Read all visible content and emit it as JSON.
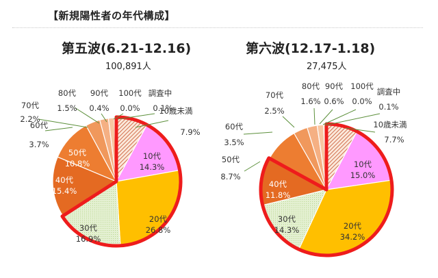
{
  "title": "【新規陽性者の年代構成】",
  "colors": {
    "u10": "#fbe9db",
    "u10_hatch": "#c7502a",
    "c10": "#ff99ff",
    "c20": "#ffbf00",
    "c30": "#e4f0d2",
    "c30_line": "#b7d68c",
    "c40": "#e46a22",
    "c50": "#ed7d31",
    "c60": "#f0985c",
    "c70": "#f5b083",
    "c80": "#f8c6a2",
    "c90": "#fbdcc3",
    "c100": "#fde9d9",
    "highlight": "#ee1c1c",
    "leader": "#5b8f3a"
  },
  "chart_data": [
    {
      "type": "pie",
      "title": "第五波(6.21-12.16)",
      "subtitle": "100,891人",
      "categories": [
        "10歳未満",
        "10代",
        "20代",
        "30代",
        "40代",
        "50代",
        "60代",
        "70代",
        "80代",
        "90代",
        "100代",
        "調査中"
      ],
      "values": [
        7.9,
        14.3,
        26.8,
        16.9,
        15.4,
        10.8,
        3.7,
        2.2,
        1.5,
        0.4,
        0.0,
        0.1
      ],
      "value_labels": [
        "7.9%",
        "14.3%",
        "26.8%",
        "16.9%",
        "15.4%",
        "10.8%",
        "3.7%",
        "2.2%",
        "1.5%",
        "0.4%",
        "0.0%",
        "0.1%"
      ],
      "highlighted": [
        "10歳未満",
        "10代",
        "20代",
        "30代"
      ]
    },
    {
      "type": "pie",
      "title": "第六波(12.17-1.18)",
      "subtitle": "27,475人",
      "categories": [
        "10歳未満",
        "10代",
        "20代",
        "30代",
        "40代",
        "50代",
        "60代",
        "70代",
        "80代",
        "90代",
        "100代",
        "調査中"
      ],
      "values": [
        7.7,
        15.0,
        34.2,
        14.3,
        11.8,
        8.7,
        3.5,
        2.5,
        1.6,
        0.6,
        0.0,
        0.1
      ],
      "value_labels": [
        "7.7%",
        "15.0%",
        "34.2%",
        "14.3%",
        "11.8%",
        "8.7%",
        "3.5%",
        "2.5%",
        "1.6%",
        "0.6%",
        "0.0%",
        "0.1%"
      ],
      "highlighted": [
        "10歳未満",
        "10代",
        "20代",
        "30代",
        "40代"
      ]
    }
  ]
}
